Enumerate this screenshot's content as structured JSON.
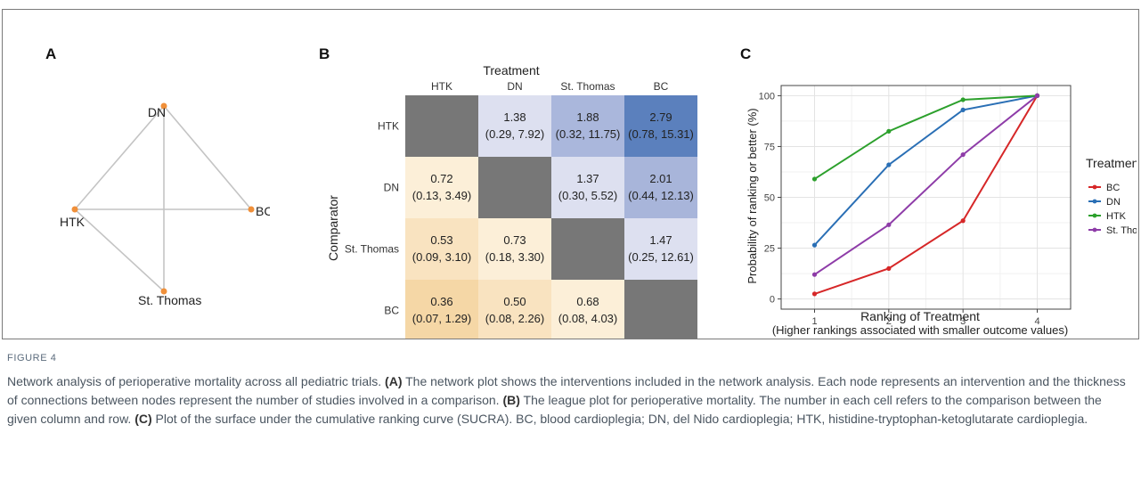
{
  "figure_label": "FIGURE 4",
  "caption": {
    "t1": "Network analysis of perioperative mortality across all pediatric trials. ",
    "a_label": "(A)",
    "t2": " The network plot shows the interventions included in the network analysis. Each node represents an intervention and the thickness of connections between nodes represent the number of studies involved in a comparison. ",
    "b_label": "(B)",
    "t3": " The league plot for perioperative mortality. The number in each cell refers to the comparison between the given column and row. ",
    "c_label": "(C)",
    "t4": " Plot of the surface under the cumulative ranking curve (SUCRA). BC, blood cardioplegia; DN, del Nido cardioplegia; HTK, histidine-tryptophan-ketoglutarate cardioplegia."
  },
  "panels": {
    "a": "A",
    "b": "B",
    "c": "C"
  },
  "network": {
    "nodes": {
      "dn": "DN",
      "htk": "HTK",
      "bc": "BC",
      "st": "St. Thomas"
    },
    "node_color": "#f0903a",
    "edge_color": "#c4c4c4"
  },
  "league": {
    "x_title": "Treatment",
    "y_title": "Comparator",
    "columns": [
      "HTK",
      "DN",
      "St. Thomas",
      "BC"
    ],
    "rows": [
      "HTK",
      "DN",
      "St. Thomas",
      "BC"
    ],
    "cells": [
      [
        null,
        {
          "est": "1.38",
          "ci": "(0.29, 7.92)"
        },
        {
          "est": "1.88",
          "ci": "(0.32, 11.75)"
        },
        {
          "est": "2.79",
          "ci": "(0.78, 15.31)"
        }
      ],
      [
        {
          "est": "0.72",
          "ci": "(0.13, 3.49)"
        },
        null,
        {
          "est": "1.37",
          "ci": "(0.30, 5.52)"
        },
        {
          "est": "2.01",
          "ci": "(0.44, 12.13)"
        }
      ],
      [
        {
          "est": "0.53",
          "ci": "(0.09, 3.10)"
        },
        {
          "est": "0.73",
          "ci": "(0.18, 3.30)"
        },
        null,
        {
          "est": "1.47",
          "ci": "(0.25, 12.61)"
        }
      ],
      [
        {
          "est": "0.36",
          "ci": "(0.07, 1.29)"
        },
        {
          "est": "0.50",
          "ci": "(0.08, 2.26)"
        },
        {
          "est": "0.68",
          "ci": "(0.08, 4.03)"
        },
        null
      ]
    ],
    "cell_colors": [
      [
        "#777777",
        "#dde0f0",
        "#aab7dc",
        "#5b80bd"
      ],
      [
        "#fcefd8",
        "#777777",
        "#dde0f0",
        "#a8b5da"
      ],
      [
        "#f9e3c0",
        "#fcefd8",
        "#777777",
        "#dde0f0"
      ],
      [
        "#f5d7a6",
        "#f9e3c0",
        "#fcefd8",
        "#777777"
      ]
    ]
  },
  "chart_data": {
    "type": "line",
    "title": "",
    "xlabel": "Ranking of Treatment",
    "xlabel2": "(Higher rankings associated with smaller outcome values)",
    "ylabel": "Probability of ranking or better (%)",
    "x": [
      1,
      2,
      3,
      4
    ],
    "x_ticks": [
      "1",
      "2",
      "3",
      "4"
    ],
    "y_ticks": [
      "0",
      "25",
      "50",
      "75",
      "100"
    ],
    "xlim": [
      0.55,
      4.45
    ],
    "ylim": [
      -5,
      105
    ],
    "grid": true,
    "legend_title": "Treatment",
    "legend_position": "right",
    "series": [
      {
        "name": "BC",
        "color": "#d62728",
        "values": [
          2.5,
          15,
          38.5,
          100
        ]
      },
      {
        "name": "DN",
        "color": "#2a6fb5",
        "values": [
          26.5,
          66,
          93,
          100
        ]
      },
      {
        "name": "HTK",
        "color": "#2ca02c",
        "values": [
          59,
          82.5,
          98,
          100
        ]
      },
      {
        "name": "St. Thomas",
        "color": "#8e3ca8",
        "values": [
          12,
          36.5,
          71,
          100
        ]
      }
    ]
  }
}
